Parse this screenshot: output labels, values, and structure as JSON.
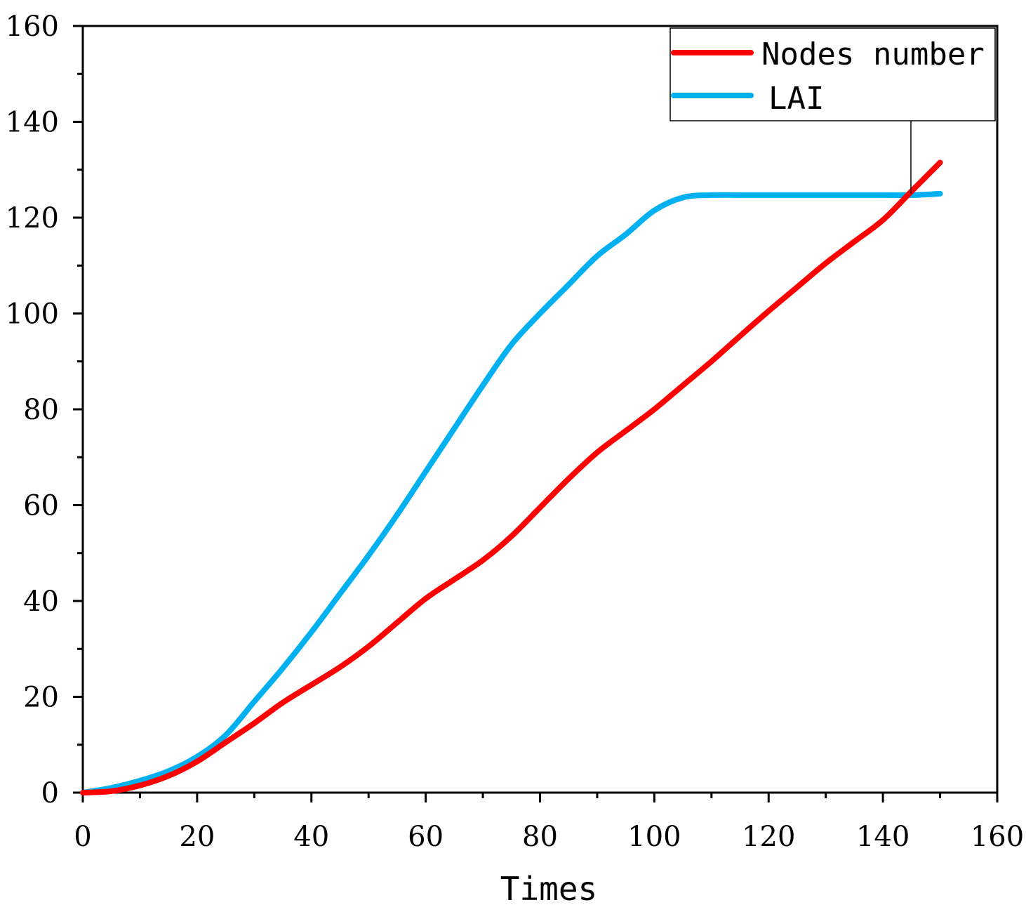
{
  "chart_data": {
    "type": "line",
    "title": "",
    "xlabel": "Times",
    "ylabel": "",
    "xlim": [
      0,
      160
    ],
    "ylim": [
      0,
      160
    ],
    "xticks": [
      0,
      20,
      40,
      60,
      80,
      100,
      120,
      140,
      160
    ],
    "yticks": [
      0,
      20,
      40,
      60,
      80,
      100,
      120,
      140,
      160
    ],
    "xtick_labels": [
      "0",
      "20",
      "40",
      "60",
      "80",
      "100",
      "120",
      "140",
      "160"
    ],
    "ytick_labels": [
      "0",
      "20",
      "40",
      "60",
      "80",
      "100",
      "120",
      "140",
      "160"
    ],
    "grid": false,
    "legend_position": "top-right",
    "series": [
      {
        "name": "Nodes number",
        "color": "#ff0000",
        "x": [
          0,
          5,
          10,
          15,
          20,
          25,
          30,
          35,
          40,
          45,
          50,
          55,
          60,
          65,
          70,
          75,
          80,
          85,
          90,
          95,
          100,
          105,
          110,
          115,
          120,
          125,
          130,
          135,
          140,
          145,
          150
        ],
        "y": [
          0,
          0.3,
          1.5,
          3.5,
          6.5,
          10.5,
          14.5,
          18.8,
          22.5,
          26.2,
          30.5,
          35.5,
          40.5,
          44.5,
          48.5,
          53.5,
          59.5,
          65.5,
          71.0,
          75.5,
          80.0,
          85.0,
          90.0,
          95.3,
          100.5,
          105.5,
          110.5,
          115.0,
          119.5,
          125.5,
          131.5
        ]
      },
      {
        "name": "LAI",
        "color": "#00b0f0",
        "x": [
          0,
          5,
          10,
          15,
          20,
          25,
          30,
          35,
          40,
          45,
          50,
          55,
          60,
          65,
          70,
          75,
          80,
          85,
          90,
          95,
          100,
          105,
          110,
          115,
          120,
          125,
          130,
          135,
          140,
          145,
          150
        ],
        "y": [
          0,
          1.0,
          2.5,
          4.5,
          7.5,
          12.0,
          19.0,
          26.0,
          33.5,
          41.5,
          49.5,
          58.0,
          67.0,
          76.0,
          85.0,
          93.5,
          100.0,
          106.0,
          112.0,
          116.5,
          121.5,
          124.2,
          124.7,
          124.7,
          124.7,
          124.7,
          124.7,
          124.7,
          124.7,
          124.7,
          125.0
        ]
      }
    ]
  }
}
